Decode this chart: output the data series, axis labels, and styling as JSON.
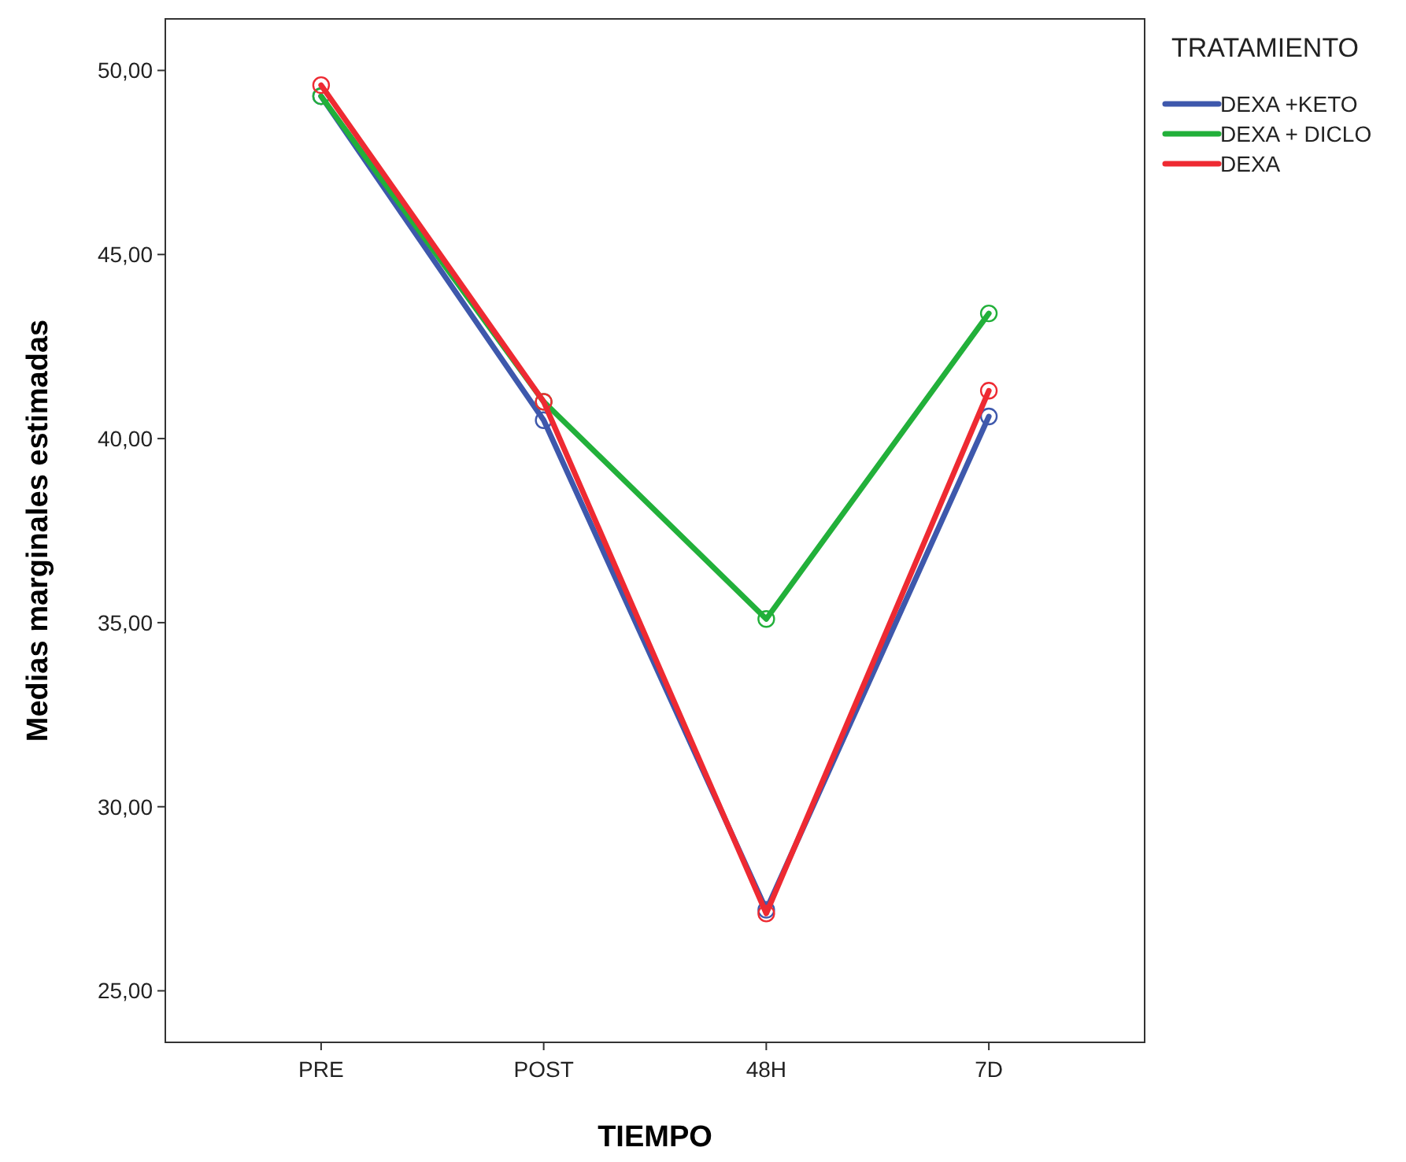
{
  "chart_data": {
    "type": "line",
    "xlabel": "TIEMPO",
    "ylabel": "Medias marginales estimadas",
    "legend_title": "TRATAMIENTO",
    "categories": [
      "PRE",
      "POST",
      "48H",
      "7D"
    ],
    "series": [
      {
        "name": "DEXA +KETO",
        "color": "#3e58ac",
        "values": [
          49.3,
          40.5,
          27.2,
          40.6
        ]
      },
      {
        "name": "DEXA + DICLO",
        "color": "#22b03a",
        "values": [
          49.3,
          41.0,
          35.1,
          43.4
        ]
      },
      {
        "name": "DEXA",
        "color": "#ee2a32",
        "values": [
          49.6,
          41.0,
          27.1,
          41.3
        ]
      }
    ],
    "ylim": [
      23.6,
      51.4
    ],
    "yticks": [
      {
        "value": 25,
        "label": "25,00"
      },
      {
        "value": 30,
        "label": "30,00"
      },
      {
        "value": 35,
        "label": "35,00"
      },
      {
        "value": 40,
        "label": "40,00"
      },
      {
        "value": 45,
        "label": "45,00"
      },
      {
        "value": 50,
        "label": "50,00"
      }
    ],
    "grid": false,
    "legend": "right",
    "marker": "circle",
    "line_style": "solid"
  }
}
